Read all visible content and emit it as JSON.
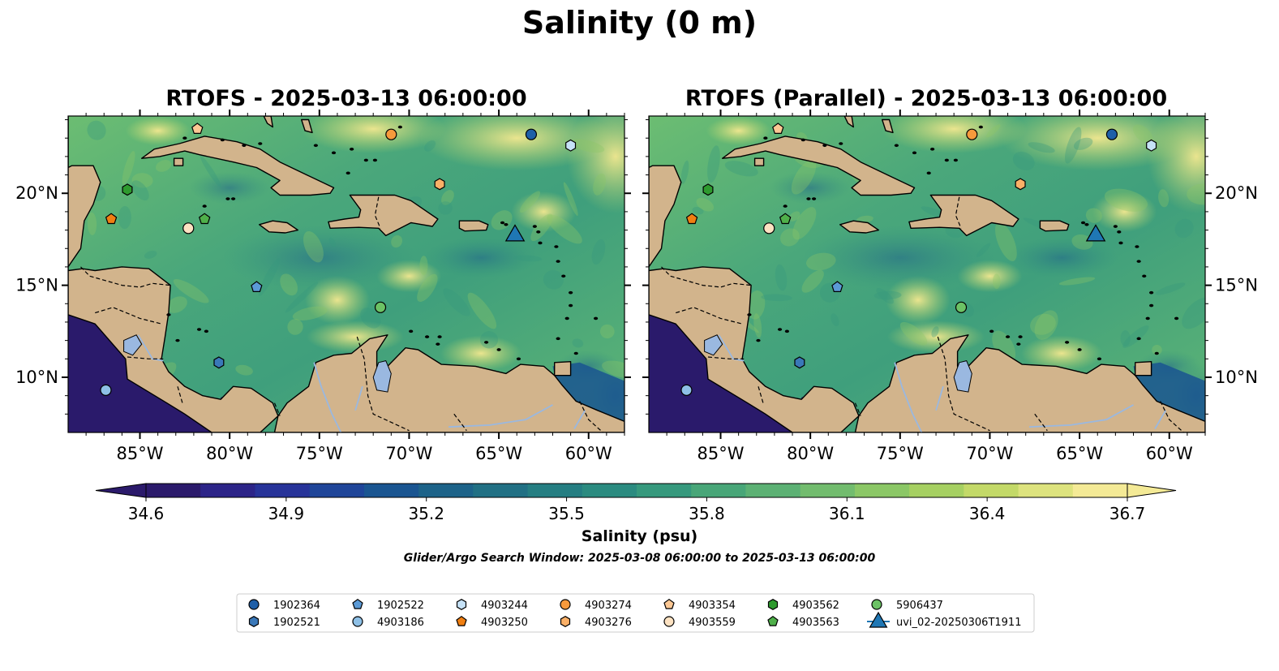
{
  "title": "Salinity (0 m)",
  "panels": [
    {
      "title": "RTOFS - 2025-03-13 06:00:00"
    },
    {
      "title": "RTOFS (Parallel) - 2025-03-13 06:00:00"
    }
  ],
  "map_extent": {
    "lon": [
      -89,
      -58
    ],
    "lat": [
      7,
      24.2
    ]
  },
  "lon_ticks": [
    "85°W",
    "80°W",
    "75°W",
    "70°W",
    "65°W",
    "60°W"
  ],
  "lon_tick_values": [
    -85,
    -80,
    -75,
    -70,
    -65,
    -60
  ],
  "lat_ticks": [
    "20°N",
    "15°N",
    "10°N"
  ],
  "lat_tick_values": [
    20,
    15,
    10
  ],
  "colorbar": {
    "label": "Salinity (psu)",
    "min": 34.6,
    "max": 36.7,
    "ticks": [
      "34.6",
      "34.9",
      "35.2",
      "35.5",
      "35.8",
      "36.1",
      "36.4",
      "36.7"
    ],
    "colors": [
      "#2b1a6b",
      "#2c2488",
      "#273399",
      "#1f4599",
      "#1a5591",
      "#1d6389",
      "#217084",
      "#257e82",
      "#2b8b80",
      "#36997d",
      "#48a678",
      "#5cb174",
      "#72bc6e",
      "#8bc766",
      "#a6d062",
      "#c3d968",
      "#dde37e",
      "#f4ea96"
    ],
    "extend": "both"
  },
  "search_window": "Glider/Argo Search Window: 2025-03-08 06:00:00 to 2025-03-13 06:00:00",
  "land_color": "#d2b48c",
  "deep_pacific_color": "#2a1a6b",
  "platforms": [
    {
      "id": "1902364",
      "marker": "circle",
      "color": "#1f5fa8",
      "lon": -63.2,
      "lat": 23.2
    },
    {
      "id": "1902521",
      "marker": "hexagon",
      "color": "#3a78b8",
      "lon": -80.6,
      "lat": 10.8
    },
    {
      "id": "1902522",
      "marker": "pentagon",
      "color": "#5b9ad6",
      "lon": -78.5,
      "lat": 14.9
    },
    {
      "id": "4903186",
      "marker": "circle",
      "color": "#8ec0e6",
      "lon": -86.9,
      "lat": 9.3
    },
    {
      "id": "4903244",
      "marker": "hexagon",
      "color": "#c6e2f7",
      "lon": -61.0,
      "lat": 22.6
    },
    {
      "id": "4903250",
      "marker": "pentagon",
      "color": "#f07f12",
      "lon": -86.6,
      "lat": 18.6
    },
    {
      "id": "4903274",
      "marker": "circle",
      "color": "#f79a3c",
      "lon": -71.0,
      "lat": 23.2
    },
    {
      "id": "4903276",
      "marker": "hexagon",
      "color": "#fbb067",
      "lon": -68.3,
      "lat": 20.5
    },
    {
      "id": "4903354",
      "marker": "pentagon",
      "color": "#fcc894",
      "lon": -81.8,
      "lat": 23.5
    },
    {
      "id": "4903559",
      "marker": "circle",
      "color": "#fde2c2",
      "lon": -82.3,
      "lat": 18.1
    },
    {
      "id": "4903562",
      "marker": "hexagon",
      "color": "#2e9a2e",
      "lon": -85.7,
      "lat": 20.2
    },
    {
      "id": "4903563",
      "marker": "pentagon",
      "color": "#4fb04a",
      "lon": -81.4,
      "lat": 18.6
    },
    {
      "id": "5906437",
      "marker": "circle",
      "color": "#6cc265",
      "lon": -71.6,
      "lat": 13.8
    },
    {
      "id": "uvi_02-20250306T1911",
      "marker": "triangle",
      "color": "#1f77b4",
      "lon": -64.1,
      "lat": 17.7
    }
  ]
}
